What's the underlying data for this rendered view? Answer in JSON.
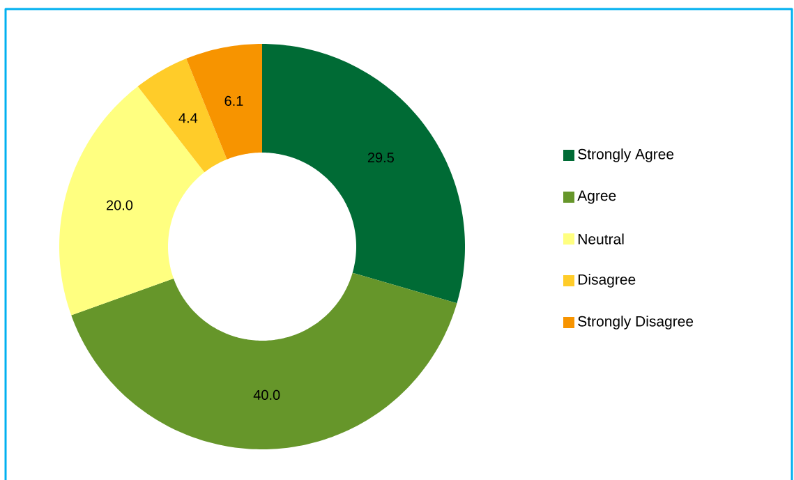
{
  "chart_data": {
    "type": "donut",
    "categories": [
      "Strongly Agree",
      "Agree",
      "Neutral",
      "Disagree",
      "Strongly Disagree"
    ],
    "values": [
      29.5,
      40.0,
      20.0,
      4.4,
      6.1
    ],
    "value_labels": [
      "29.5",
      "40.0",
      "20.0",
      "4.4",
      "6.1"
    ],
    "colors": [
      "#006b35",
      "#66962a",
      "#ffff80",
      "#ffcc29",
      "#f79400"
    ],
    "legend": "right"
  }
}
